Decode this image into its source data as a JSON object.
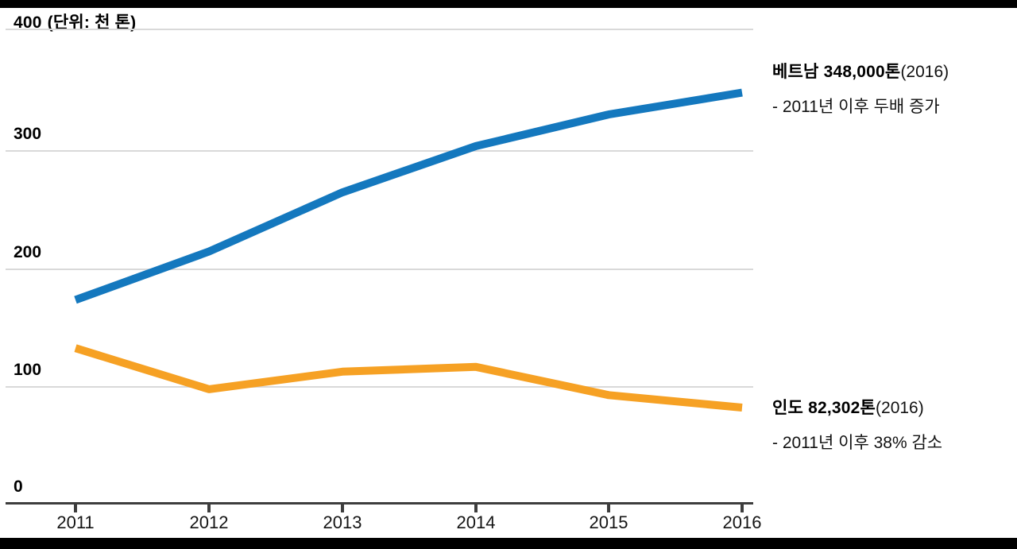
{
  "page": {
    "background": "#ffffff",
    "letterbox_color": "#000000"
  },
  "chart_data": {
    "type": "line",
    "unit_note": "(단위: 천 톤)",
    "categories": [
      "2011",
      "2012",
      "2013",
      "2014",
      "2015",
      "2016"
    ],
    "series": [
      {
        "name": "베트남",
        "color": "#1478BE",
        "values": [
          174,
          215,
          265,
          304,
          330,
          348
        ]
      },
      {
        "name": "인도",
        "color": "#F6A124",
        "values": [
          133,
          98,
          113,
          117,
          93,
          82.302
        ]
      }
    ],
    "ylim": [
      0,
      400
    ],
    "ytick_labels": [
      "400",
      "300",
      "200",
      "100",
      "0"
    ],
    "ytick_values": [
      400,
      300,
      200,
      100,
      0
    ],
    "grid": true,
    "legend_position": "direct-labels-right"
  },
  "annotations": {
    "vietnam": {
      "headline_bold": "베트남 348,000톤",
      "headline_suffix": "(2016)",
      "note": "- 2011년 이후 두배 증가"
    },
    "india": {
      "headline_bold": "인도 82,302톤",
      "headline_suffix": "(2016)",
      "note": "- 2011년 이후 38% 감소"
    }
  },
  "colors": {
    "vietnam_line": "#1478BE",
    "india_line": "#F6A124",
    "gridline": "#D9D9D9",
    "axis": "#3D3D3D"
  }
}
